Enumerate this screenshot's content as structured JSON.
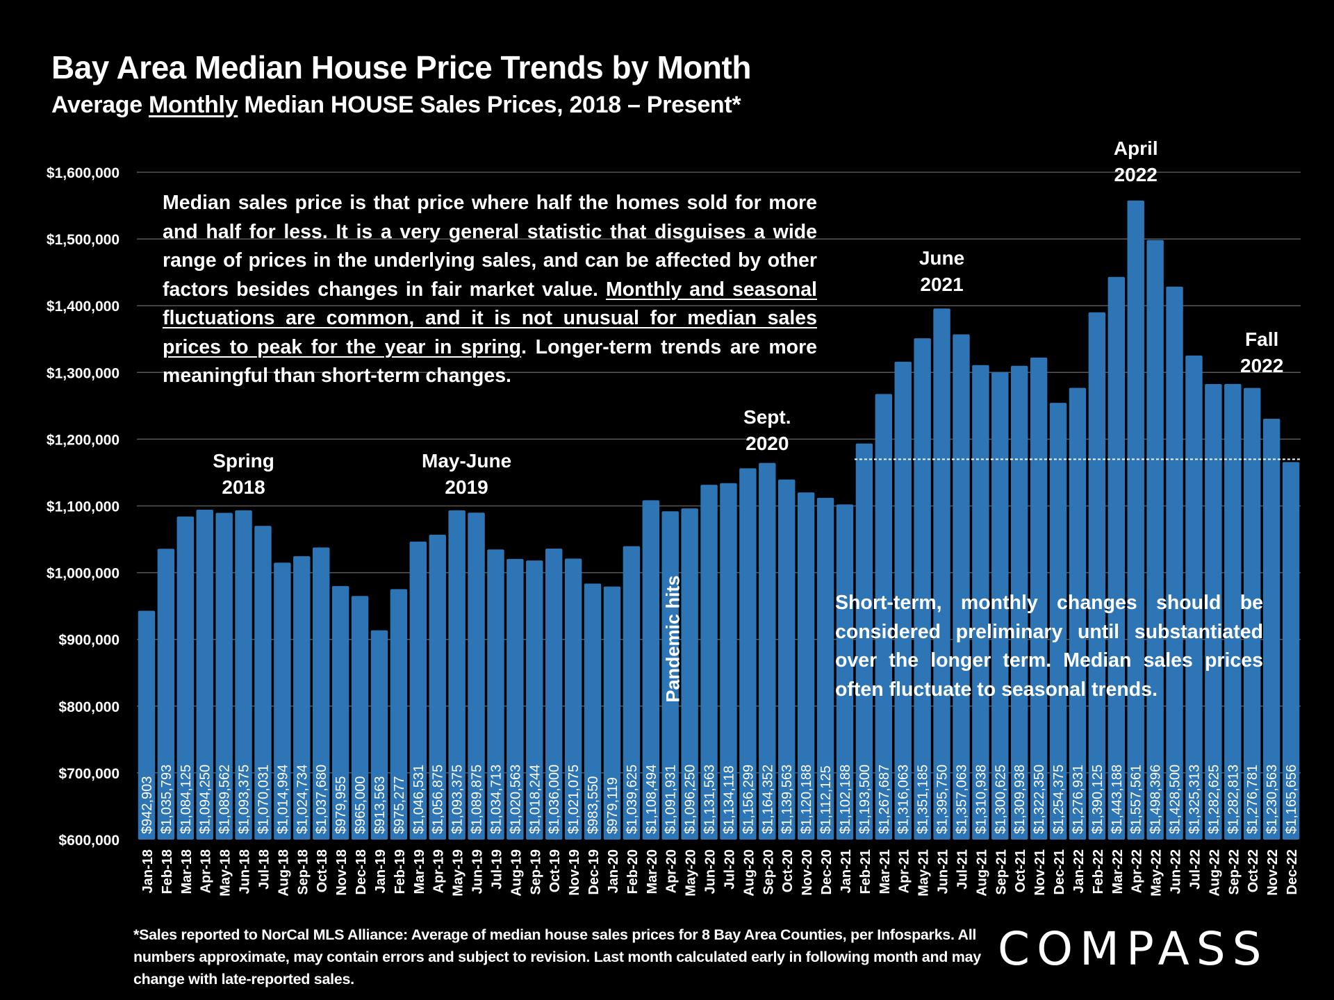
{
  "header": {
    "title": "Bay Area Median House Price Trends by Month",
    "subtitle_pre": "Average ",
    "subtitle_underlined": "Monthly",
    "subtitle_post": " Median HOUSE Sales Prices, 2018 – Present*"
  },
  "notes": {
    "top_part1": "Median sales price is that price where half the homes sold for more and half for less. It is a very general statistic that disguises a wide range of prices in the underlying sales, and can be affected by other factors besides changes in fair market value. ",
    "top_underlined": "Monthly and seasonal fluctuations are common, and it is not unusual for median sales prices to peak for the year in spring",
    "top_part2": ". Longer-term trends are more meaningful than short-term changes.",
    "bottom_box": "Short-term, monthly changes should be considered preliminary until substantiated over the longer term. Median sales prices often fluctuate to seasonal trends.",
    "pandemic": "Pandemic hits"
  },
  "annotations": [
    {
      "line1": "Spring",
      "line2": "2018",
      "month_index": 5
    },
    {
      "line1": "May-June",
      "line2": "2019",
      "month_index": 16.5
    },
    {
      "line1": "Sept.",
      "line2": "2020",
      "month_index": 32
    },
    {
      "line1": "June",
      "line2": "2021",
      "month_index": 41
    },
    {
      "line1": "April",
      "line2": "2022",
      "month_index": 51
    },
    {
      "line1": "Fall",
      "line2": "2022",
      "month_index": 57.5
    }
  ],
  "footnote": "*Sales reported to NorCal MLS Alliance: Average of median house sales prices for 8 Bay Area Counties, per Infosparks. All numbers approximate, may contain errors and subject to revision. Last month calculated early in following month and may change with late-reported sales.",
  "logo": "COMPASS",
  "colors": {
    "bar": "#2e75b6",
    "background": "#000000",
    "text": "#ffffff",
    "grid": "#595959"
  },
  "chart_data": {
    "type": "bar",
    "title": "Bay Area Median House Price Trends by Month",
    "subtitle": "Average Monthly Median HOUSE Sales Prices, 2018 – Present*",
    "xlabel": "",
    "ylabel": "",
    "ylim": [
      600000,
      1600000
    ],
    "yticks": [
      600000,
      700000,
      800000,
      900000,
      1000000,
      1100000,
      1200000,
      1300000,
      1400000,
      1500000,
      1600000
    ],
    "ytick_labels": [
      "$600,000",
      "$700,000",
      "$800,000",
      "$900,000",
      "$1,000,000",
      "$1,100,000",
      "$1,200,000",
      "$1,300,000",
      "$1,400,000",
      "$1,500,000",
      "$1,600,000"
    ],
    "grid": true,
    "reference_line": {
      "value": 1165656,
      "style": "dashed",
      "from_category": "Feb-21",
      "to_category": "Dec-22"
    },
    "categories": [
      "Jan-18",
      "Feb-18",
      "Mar-18",
      "Apr-18",
      "May-18",
      "Jun-18",
      "Jul-18",
      "Aug-18",
      "Sep-18",
      "Oct-18",
      "Nov-18",
      "Dec-18",
      "Jan-19",
      "Feb-19",
      "Mar-19",
      "Apr-19",
      "May-19",
      "Jun-19",
      "Jul-19",
      "Aug-19",
      "Sep-19",
      "Oct-19",
      "Nov-19",
      "Dec-19",
      "Jan-20",
      "Feb-20",
      "Mar-20",
      "Apr-20",
      "May-20",
      "Jun-20",
      "Jul-20",
      "Aug-20",
      "Sep-20",
      "Oct-20",
      "Nov-20",
      "Dec-20",
      "Jan-21",
      "Feb-21",
      "Mar-21",
      "Apr-21",
      "May-21",
      "Jun-21",
      "Jul-21",
      "Aug-21",
      "Sep-21",
      "Oct-21",
      "Nov-21",
      "Dec-21",
      "Jan-22",
      "Feb-22",
      "Mar-22",
      "Apr-22",
      "May-22",
      "Jun-22",
      "Jul-22",
      "Aug-22",
      "Sep-22",
      "Oct-22",
      "Nov-22",
      "Dec-22"
    ],
    "values": [
      942903,
      1035793,
      1084125,
      1094250,
      1089562,
      1093375,
      1070031,
      1014994,
      1024734,
      1037680,
      979955,
      965000,
      913563,
      975277,
      1046531,
      1056875,
      1093375,
      1089875,
      1034713,
      1020563,
      1018244,
      1036000,
      1021075,
      983550,
      979119,
      1039625,
      1108494,
      1091931,
      1096250,
      1131563,
      1134118,
      1156299,
      1164352,
      1139563,
      1120188,
      1112125,
      1102188,
      1193500,
      1267687,
      1316063,
      1351185,
      1395750,
      1357063,
      1310938,
      1300625,
      1309938,
      1322350,
      1254375,
      1276931,
      1390125,
      1443188,
      1557561,
      1498396,
      1428500,
      1325313,
      1282625,
      1282813,
      1276781,
      1230563,
      1165656
    ],
    "value_labels": [
      "$942,903",
      "$1,035,793",
      "$1,084,125",
      "$1,094,250",
      "$1,089,562",
      "$1,093,375",
      "$1,070,031",
      "$1,014,994",
      "$1,024,734",
      "$1,037,680",
      "$979,955",
      "$965,000",
      "$913,563",
      "$975,277",
      "$1,046,531",
      "$1,056,875",
      "$1,093,375",
      "$1,089,875",
      "$1,034,713",
      "$1,020,563",
      "$1,018,244",
      "$1,036,000",
      "$1,021,075",
      "$983,550",
      "$979,119",
      "$1,039,625",
      "$1,108,494",
      "$1,091,931",
      "$1,096,250",
      "$1,131,563",
      "$1,134,118",
      "$1,156,299",
      "$1,164,352",
      "$1,139,563",
      "$1,120,188",
      "$1,112,125",
      "$1,102,188",
      "$1,193,500",
      "$1,267,687",
      "$1,316,063",
      "$1,351,185",
      "$1,395,750",
      "$1,357,063",
      "$1,310,938",
      "$1,300,625",
      "$1,309,938",
      "$1,322,350",
      "$1,254,375",
      "$1,276,931",
      "$1,390,125",
      "$1,443,188",
      "$1,557,561",
      "$1,498,396",
      "$1,428,500",
      "$1,325,313",
      "$1,282,625",
      "$1,282,813",
      "$1,276,781",
      "$1,230,563",
      "$1,165,656"
    ]
  }
}
